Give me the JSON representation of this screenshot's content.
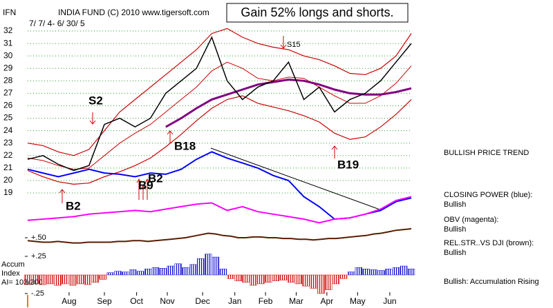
{
  "chart_data": [
    {
      "type": "line",
      "title": "INDIA FUND   (C) 2010 www.tigersoft.com",
      "headline": "Gain 52% longs and shorts.",
      "subtitle": "7/ 7/ 4- 6/ 30/ 5",
      "y_label": "IFN",
      "xlim": [
        0,
        25
      ],
      "xticks": [
        {
          "value": 2.7,
          "label": "Aug"
        },
        {
          "value": 5.0,
          "label": "Sep"
        },
        {
          "value": 7.1,
          "label": "Oct"
        },
        {
          "value": 9.1,
          "label": "Nov"
        },
        {
          "value": 11.4,
          "label": "Dec"
        },
        {
          "value": 13.5,
          "label": "Jan"
        },
        {
          "value": 15.5,
          "label": "Feb"
        },
        {
          "value": 17.5,
          "label": "Mar"
        },
        {
          "value": 19.5,
          "label": "Apr"
        },
        {
          "value": 21.5,
          "label": "May"
        },
        {
          "value": 23.6,
          "label": "Jun"
        }
      ],
      "ylim": [
        15.9,
        32.7
      ],
      "yticks": [
        19,
        20,
        21,
        22,
        23,
        24,
        25,
        26,
        27,
        28,
        29,
        30,
        31,
        32
      ],
      "grid": true,
      "series": [
        {
          "color": "#cc0000",
          "width": 1.2,
          "values": [
            23,
            22.8,
            22.3,
            22,
            22.5,
            24,
            25.5,
            26.5,
            27.5,
            28.5,
            29.5,
            30.5,
            31.8,
            32.2,
            31.5,
            31,
            30.7,
            30.5,
            30,
            29.7,
            29.2,
            28.6,
            28.5,
            29,
            30,
            31.8
          ]
        },
        {
          "color": "#cc0000",
          "width": 1.2,
          "values": [
            20.8,
            20.3,
            19.9,
            19.7,
            19.8,
            20.3,
            20.7,
            21.2,
            21.8,
            22.7,
            23.7,
            24.8,
            25.8,
            26.5,
            26.8,
            26.2,
            25.9,
            25.6,
            25.2,
            24.7,
            23.8,
            23.3,
            23.5,
            24.3,
            25.3,
            26.5
          ]
        },
        {
          "color": "#cc0000",
          "width": 1,
          "values": [
            21.8,
            21.6,
            21.2,
            20.9,
            21,
            22,
            23,
            23.8,
            24.5,
            25.5,
            26.5,
            27.5,
            28.8,
            29.5,
            29,
            28.2,
            28,
            28.3,
            28.2,
            27.5,
            26.8,
            26.2,
            26.2,
            26.8,
            27.8,
            29.2
          ]
        },
        {
          "color": "#800080",
          "width": 3,
          "values": [
            null,
            null,
            null,
            null,
            null,
            null,
            null,
            null,
            null,
            24.3,
            25.0,
            25.8,
            26.5,
            26.9,
            27.3,
            27.7,
            27.9,
            28.1,
            28.0,
            27.7,
            27.3,
            27.0,
            26.9,
            26.9,
            27.1,
            27.4
          ]
        },
        {
          "color": "#000000",
          "width": 1.5,
          "values": [
            21.7,
            22.0,
            21.3,
            20.8,
            21.2,
            24.5,
            25.0,
            24.3,
            25.0,
            27.0,
            28.0,
            29.0,
            31.5,
            28.0,
            26.5,
            27.5,
            28.0,
            29.5,
            26.5,
            27.5,
            25.5,
            26.5,
            27.0,
            28.0,
            29.5,
            31.0
          ]
        },
        {
          "color": "#0000ff",
          "width": 2,
          "values": [
            20.9,
            20.6,
            20.3,
            20.6,
            20.9,
            20.6,
            20.5,
            20.3,
            20.6,
            20.5,
            20.9,
            21.7,
            22.3,
            21.8,
            21.4,
            21.0,
            20.4,
            20.0,
            18.7,
            17.9,
            16.9,
            17.0,
            17.3,
            17.6,
            18.3,
            18.6
          ]
        },
        {
          "color": "#ff00ff",
          "width": 2,
          "values": [
            16.8,
            16.9,
            17.0,
            17.1,
            17.3,
            17.4,
            17.5,
            17.6,
            17.5,
            17.7,
            17.9,
            18.1,
            18.2,
            17.6,
            17.9,
            17.5,
            17.3,
            17.1,
            16.9,
            16.6,
            16.9,
            17.0,
            17.3,
            17.7,
            18.4,
            18.7
          ]
        }
      ],
      "annotations": [
        "S2",
        "B2",
        "B9",
        "B2",
        "B18",
        "S15",
        "B19"
      ],
      "notes": [
        "BULLISH PRICE TREND",
        "CLOSING POWER (blue):",
        "Bullish",
        "OBV (magenta):",
        "Bullish",
        "REL.STR..VS DJI (brown):",
        "Bullish",
        "Bullish: Accumulation Rising"
      ]
    },
    {
      "type": "bar",
      "label_lines": [
        "Accum",
        "Index",
        "AI= 103/200"
      ],
      "xlim": [
        0,
        51
      ],
      "ylim": [
        -0.38,
        0.66
      ],
      "yticks": [
        {
          "value": 0.5,
          "label": "+.50"
        },
        {
          "value": 0.25,
          "label": "+.25"
        },
        {
          "value": -0.25,
          "label": "-.25"
        }
      ],
      "positive_color": "#0000cc",
      "negative_color": "#cc0000",
      "values": [
        -0.13,
        -0.12,
        -0.13,
        -0.12,
        -0.14,
        -0.12,
        -0.14,
        -0.12,
        -0.13,
        -0.1,
        -0.06,
        0.03,
        0.05,
        0.04,
        0.07,
        0.05,
        0.08,
        0.1,
        0.09,
        0.12,
        0.15,
        0.1,
        0.14,
        0.22,
        0.28,
        0.24,
        0.08,
        -0.05,
        -0.08,
        -0.1,
        -0.14,
        -0.12,
        -0.1,
        -0.08,
        -0.07,
        -0.1,
        -0.12,
        -0.15,
        -0.18,
        -0.25,
        -0.2,
        -0.12,
        -0.05,
        0.04,
        0.1,
        0.08,
        0.07,
        0.06,
        0.08,
        0.1,
        0.12,
        0.08
      ],
      "series": [
        {
          "color": "#5a1a00",
          "width": 2,
          "values": [
            0.46,
            0.45,
            0.44,
            0.44,
            0.45,
            0.44,
            0.43,
            0.43,
            0.44,
            0.44,
            0.44,
            0.44,
            0.45,
            0.45,
            0.46,
            0.46,
            0.45,
            0.46,
            0.47,
            0.48,
            0.49,
            0.5,
            0.52,
            0.54,
            0.56,
            0.55,
            0.53,
            0.52,
            0.5,
            0.5,
            0.51,
            0.51,
            0.5,
            0.5,
            0.49,
            0.49,
            0.48,
            0.48,
            0.47,
            0.48,
            0.49,
            0.49,
            0.5,
            0.51,
            0.52,
            0.53,
            0.55,
            0.56,
            0.58,
            0.6,
            0.61,
            0.62
          ]
        }
      ]
    }
  ]
}
